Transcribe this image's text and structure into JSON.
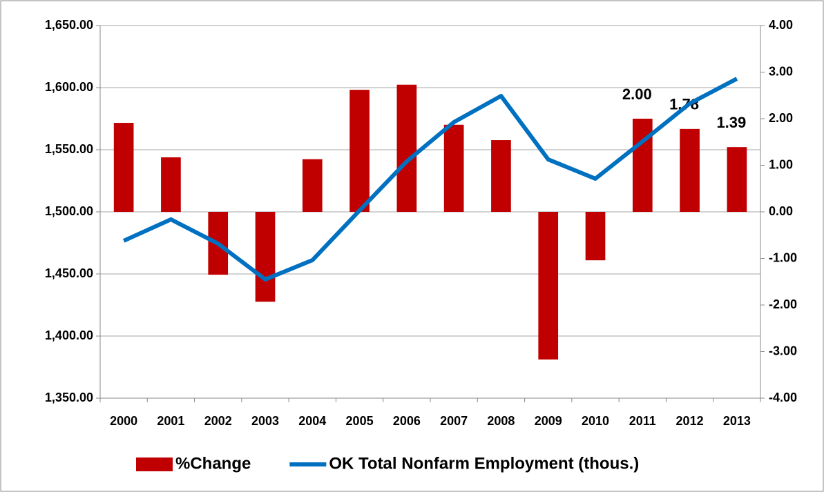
{
  "chart_data": {
    "type": "combo",
    "categories": [
      "2000",
      "2001",
      "2002",
      "2003",
      "2004",
      "2005",
      "2006",
      "2007",
      "2008",
      "2009",
      "2010",
      "2011",
      "2012",
      "2013"
    ],
    "series": [
      {
        "name": "%Change",
        "type": "bar",
        "axis": "y2",
        "color": "#c00000",
        "values": [
          1.91,
          1.17,
          -1.35,
          -1.93,
          1.13,
          2.62,
          2.73,
          1.87,
          1.54,
          -3.17,
          -1.04,
          2.0,
          1.78,
          1.39
        ],
        "value_labels": [
          null,
          null,
          null,
          null,
          null,
          null,
          null,
          null,
          null,
          null,
          null,
          "2.00",
          "1.78",
          "1.39"
        ]
      },
      {
        "name": "OK Total Nonfarm Employment (thous.)",
        "type": "line",
        "axis": "y",
        "color": "#0070c0",
        "values": [
          1476.7,
          1493.9,
          1474.4,
          1445.6,
          1461.1,
          1501.1,
          1540.6,
          1572.2,
          1593.3,
          1542.2,
          1526.7,
          1556.7,
          1587.2,
          1607.2
        ]
      }
    ],
    "ylim": [
      1350,
      1650
    ],
    "yticks": [
      {
        "value": 1350,
        "label": "1,350.00"
      },
      {
        "value": 1400,
        "label": "1,400.00"
      },
      {
        "value": 1450,
        "label": "1,450.00"
      },
      {
        "value": 1500,
        "label": "1,500.00"
      },
      {
        "value": 1550,
        "label": "1,550.00"
      },
      {
        "value": 1600,
        "label": "1,600.00"
      },
      {
        "value": 1650,
        "label": "1,650.00"
      }
    ],
    "y2lim": [
      -4,
      4
    ],
    "y2ticks": [
      {
        "value": -4,
        "label": "-4.00"
      },
      {
        "value": -3,
        "label": "-3.00"
      },
      {
        "value": -2,
        "label": "-2.00"
      },
      {
        "value": -1,
        "label": "-1.00"
      },
      {
        "value": 0,
        "label": "0.00"
      },
      {
        "value": 1,
        "label": "1.00"
      },
      {
        "value": 2,
        "label": "2.00"
      },
      {
        "value": 3,
        "label": "3.00"
      },
      {
        "value": 4,
        "label": "4.00"
      }
    ],
    "grid": true,
    "legend": "bottom"
  }
}
